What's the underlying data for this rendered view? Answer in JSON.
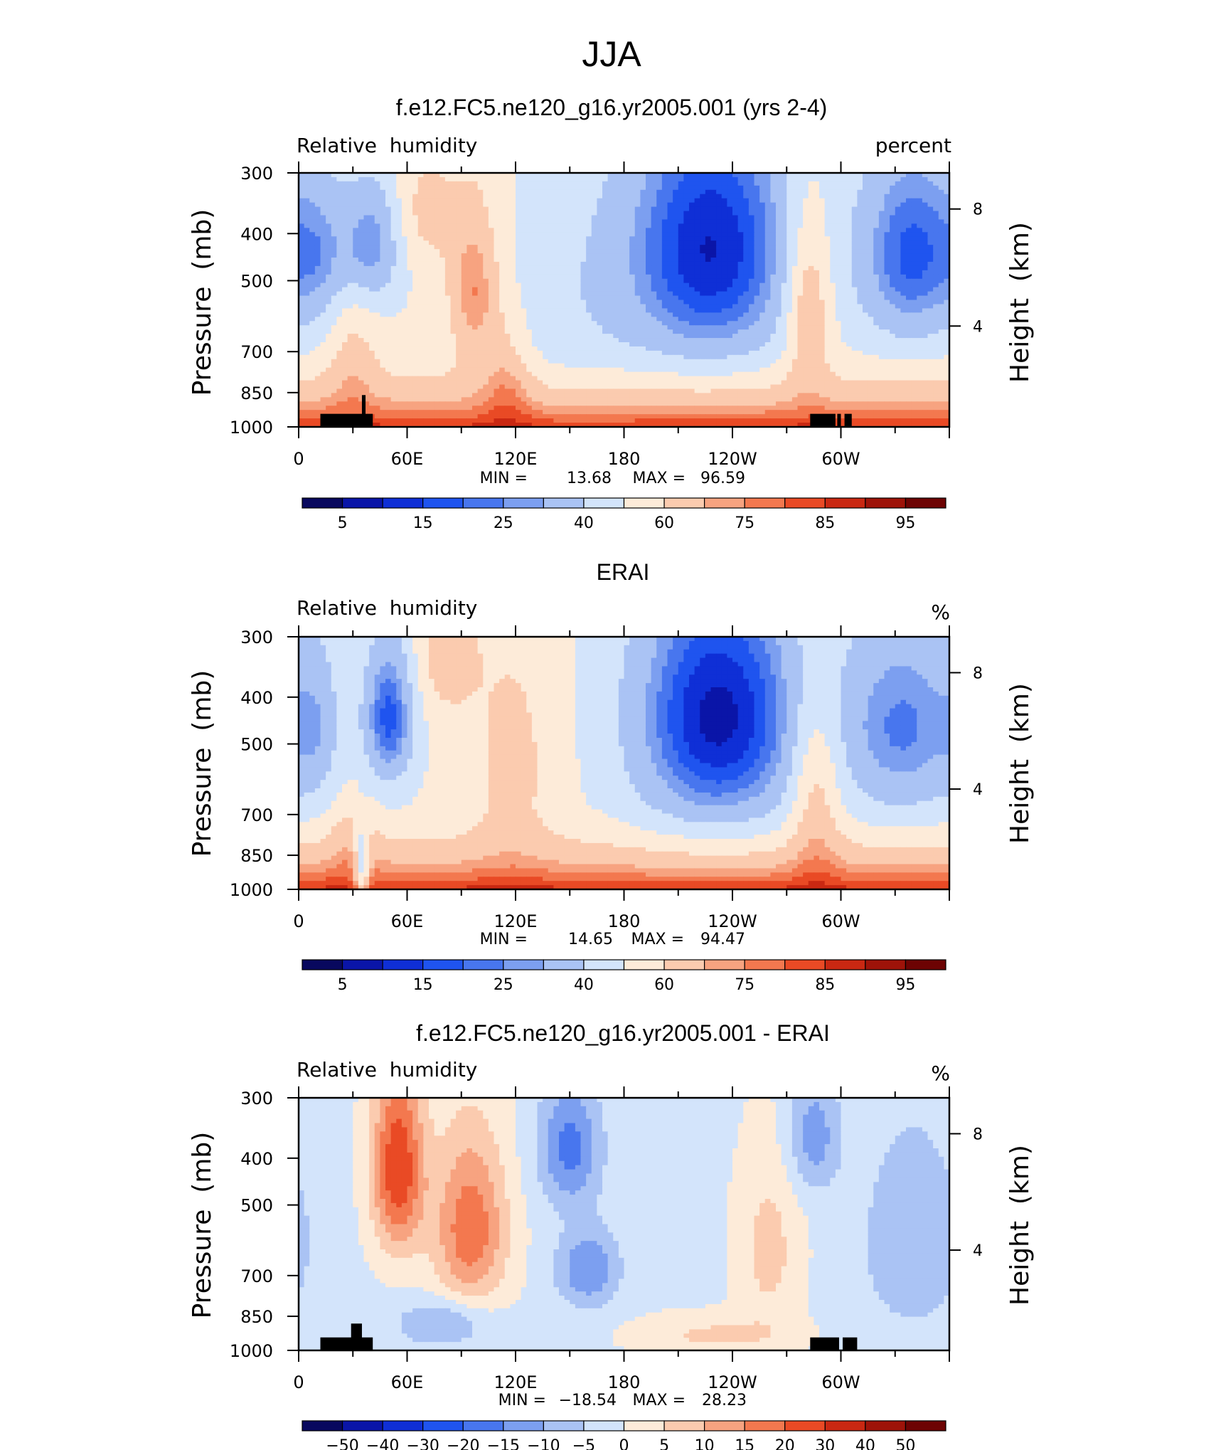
{
  "page": {
    "main_title": "JJA"
  },
  "colors": {
    "rh_levels": [
      "#08085e",
      "#0a15a8",
      "#0f2fd6",
      "#1f54ef",
      "#4876ee",
      "#7c9ff0",
      "#aac3f4",
      "#d3e4fb",
      "#fdebd9",
      "#fbcbaf",
      "#f7a380",
      "#f3784f",
      "#e94a25",
      "#c92812",
      "#9e1309",
      "#6d0303"
    ],
    "diff_levels": [
      "#08085e",
      "#0a15a8",
      "#0f2fd6",
      "#1f54ef",
      "#4876ee",
      "#7c9ff0",
      "#aac3f4",
      "#d3e4fb",
      "#fdebd9",
      "#fbcbaf",
      "#f7a380",
      "#f3784f",
      "#e94a25",
      "#c92812",
      "#9e1309",
      "#6d0303"
    ],
    "topography": "#000000"
  },
  "chart_data": [
    {
      "type": "heatmap",
      "id": "model",
      "title": "f.e12.FC5.ne120_g16.yr2005.001 (yrs 2-4)",
      "variable": "Relative  humidity",
      "units": "percent",
      "ylabel": "Pressure  (mb)",
      "ylabel_right": "Height  (km)",
      "x_ticks": [
        "0",
        "60E",
        "120E",
        "180",
        "120W",
        "60W"
      ],
      "x_range_deg": [
        0,
        360
      ],
      "y_ticks": [
        "300",
        "400",
        "500",
        "700",
        "850",
        "1000"
      ],
      "y_range_mb": [
        300,
        1000
      ],
      "right_ticks": [
        "8",
        "4"
      ],
      "stats": {
        "min_label": "MIN =",
        "min": "13.68",
        "max_label": "MAX =",
        "max": "96.59"
      },
      "colorbar_labels": [
        "5",
        "15",
        "25",
        "40",
        "60",
        "75",
        "85",
        "95"
      ],
      "levels": [
        5,
        10,
        15,
        20,
        25,
        30,
        40,
        50,
        60,
        70,
        75,
        80,
        85,
        90,
        95
      ],
      "field": {
        "base": 52,
        "surface_gain": 34,
        "features": [
          {
            "lon": 40,
            "p": 420,
            "amp": -26,
            "sx": 12,
            "sy": 90
          },
          {
            "lon": 12,
            "p": 440,
            "amp": -14,
            "sx": 10,
            "sy": 110
          },
          {
            "lon": 70,
            "p": 360,
            "amp": 12,
            "sx": 12,
            "sy": 70
          },
          {
            "lon": 97,
            "p": 520,
            "amp": 24,
            "sx": 10,
            "sy": 140
          },
          {
            "lon": 115,
            "p": 780,
            "amp": 14,
            "sx": 10,
            "sy": 140
          },
          {
            "lon": 152,
            "p": 560,
            "amp": -8,
            "sx": 30,
            "sy": 240
          },
          {
            "lon": 228,
            "p": 430,
            "amp": -42,
            "sx": 34,
            "sy": 200
          },
          {
            "lon": 282,
            "p": 560,
            "amp": 24,
            "sx": 9,
            "sy": 170
          },
          {
            "lon": 340,
            "p": 440,
            "amp": -34,
            "sx": 22,
            "sy": 150
          },
          {
            "lon": 30,
            "p": 720,
            "amp": 12,
            "sx": 10,
            "sy": 140
          }
        ],
        "topography": [
          [
            12,
            41,
            940
          ],
          [
            35,
            37,
            860
          ],
          [
            283,
            297,
            940
          ],
          [
            298,
            300,
            940
          ],
          [
            302,
            306,
            940
          ]
        ]
      }
    },
    {
      "type": "heatmap",
      "id": "obs",
      "title": "ERAI",
      "variable": "Relative  humidity",
      "units": "%",
      "ylabel": "Pressure  (mb)",
      "ylabel_right": "Height  (km)",
      "x_ticks": [
        "0",
        "60E",
        "120E",
        "180",
        "120W",
        "60W"
      ],
      "x_range_deg": [
        0,
        360
      ],
      "y_ticks": [
        "300",
        "400",
        "500",
        "700",
        "850",
        "1000"
      ],
      "y_range_mb": [
        300,
        1000
      ],
      "right_ticks": [
        "8",
        "4"
      ],
      "stats": {
        "min_label": "MIN =",
        "min": "14.65",
        "max_label": "MAX =",
        "max": "94.47"
      },
      "colorbar_labels": [
        "5",
        "15",
        "25",
        "40",
        "60",
        "75",
        "85",
        "95"
      ],
      "levels": [
        5,
        10,
        15,
        20,
        25,
        30,
        40,
        50,
        60,
        70,
        75,
        80,
        85,
        90,
        95
      ],
      "field": {
        "base": 52,
        "surface_gain": 34,
        "features": [
          {
            "lon": 50,
            "p": 440,
            "amp": -34,
            "sx": 10,
            "sy": 110
          },
          {
            "lon": 10,
            "p": 460,
            "amp": -12,
            "sx": 9,
            "sy": 130
          },
          {
            "lon": 82,
            "p": 330,
            "amp": 14,
            "sx": 12,
            "sy": 70
          },
          {
            "lon": 118,
            "p": 560,
            "amp": 12,
            "sx": 16,
            "sy": 220
          },
          {
            "lon": 35,
            "p": 900,
            "amp": -30,
            "sx": 3,
            "sy": 120
          },
          {
            "lon": 232,
            "p": 440,
            "amp": -44,
            "sx": 34,
            "sy": 200
          },
          {
            "lon": 286,
            "p": 620,
            "amp": 20,
            "sx": 10,
            "sy": 200
          },
          {
            "lon": 335,
            "p": 460,
            "amp": -28,
            "sx": 26,
            "sy": 160
          },
          {
            "lon": 30,
            "p": 780,
            "amp": 10,
            "sx": 10,
            "sy": 120
          }
        ],
        "topography": []
      }
    },
    {
      "type": "heatmap",
      "id": "diff",
      "title": "f.e12.FC5.ne120_g16.yr2005.001 - ERAI",
      "variable": "Relative  humidity",
      "units": "%",
      "ylabel": "Pressure  (mb)",
      "ylabel_right": "Height  (km)",
      "x_ticks": [
        "0",
        "60E",
        "120E",
        "180",
        "120W",
        "60W"
      ],
      "x_range_deg": [
        0,
        360
      ],
      "y_ticks": [
        "300",
        "400",
        "500",
        "700",
        "850",
        "1000"
      ],
      "y_range_mb": [
        300,
        1000
      ],
      "right_ticks": [
        "8",
        "4"
      ],
      "stats": {
        "min_label": "MIN =",
        "min": "−18.54",
        "max_label": "MAX =",
        "max": "28.23"
      },
      "colorbar_labels": [
        "−50",
        "−40",
        "−30",
        "−20",
        "−15",
        "−10",
        "−5",
        "0",
        "5",
        "10",
        "15",
        "20",
        "30",
        "40",
        "50"
      ],
      "levels": [
        -50,
        -40,
        -30,
        -20,
        -15,
        -10,
        -5,
        0,
        5,
        10,
        15,
        20,
        30,
        40,
        50
      ],
      "field": {
        "base": -1,
        "surface_gain": 0,
        "features": [
          {
            "lon": 55,
            "p": 420,
            "amp": 26,
            "sx": 10,
            "sy": 130
          },
          {
            "lon": 95,
            "p": 560,
            "amp": 20,
            "sx": 14,
            "sy": 160
          },
          {
            "lon": 150,
            "p": 380,
            "amp": -16,
            "sx": 12,
            "sy": 80
          },
          {
            "lon": 160,
            "p": 680,
            "amp": -14,
            "sx": 12,
            "sy": 90
          },
          {
            "lon": 285,
            "p": 360,
            "amp": -12,
            "sx": 10,
            "sy": 70
          },
          {
            "lon": 340,
            "p": 600,
            "amp": -9,
            "sx": 20,
            "sy": 200
          },
          {
            "lon": 260,
            "p": 620,
            "amp": 8,
            "sx": 12,
            "sy": 180
          },
          {
            "lon": 80,
            "p": 880,
            "amp": -10,
            "sx": 18,
            "sy": 70
          },
          {
            "lon": 230,
            "p": 930,
            "amp": 7,
            "sx": 30,
            "sy": 60
          }
        ],
        "topography": [
          [
            12,
            41,
            940
          ],
          [
            29,
            35,
            880
          ],
          [
            283,
            299,
            940
          ],
          [
            301,
            309,
            940
          ]
        ]
      }
    }
  ]
}
